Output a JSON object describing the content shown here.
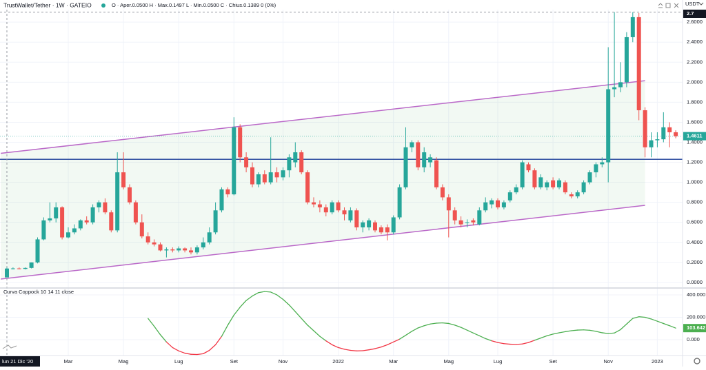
{
  "chart_data": {
    "type": "candlestick",
    "title": "TrustWallet/Tether · 1W · GATEIO",
    "legend_values": "O · Aper.0.0500  H · Max.0.1497  L · Min.0.0500  C · Chius.0.1389  0 (0%)",
    "currency": "USDT",
    "up_color": "#26a69a",
    "down_color": "#ef5350",
    "categories": [
      "lun 21 Dic '20",
      null,
      null,
      null,
      null,
      null,
      null,
      null,
      null,
      null,
      "Mar",
      null,
      null,
      null,
      null,
      null,
      null,
      null,
      null,
      "Mag",
      null,
      null,
      null,
      null,
      null,
      null,
      null,
      null,
      "Lug",
      null,
      null,
      null,
      null,
      null,
      null,
      null,
      null,
      "Set",
      null,
      null,
      null,
      null,
      null,
      null,
      null,
      "Nov",
      null,
      null,
      null,
      null,
      null,
      null,
      null,
      null,
      "2022",
      null,
      null,
      null,
      null,
      null,
      null,
      null,
      null,
      "Mar",
      null,
      null,
      null,
      null,
      null,
      null,
      null,
      null,
      "Mag",
      null,
      null,
      null,
      null,
      null,
      null,
      null,
      "Lug",
      null,
      null,
      null,
      null,
      null,
      null,
      null,
      null,
      "Set",
      null,
      null,
      null,
      null,
      null,
      null,
      null,
      null,
      "Nov",
      null,
      null,
      null,
      null,
      null,
      null,
      null,
      "2023",
      null,
      null,
      null
    ],
    "ohlc": [
      [
        0.05,
        0.1497,
        0.05,
        0.1389
      ],
      [
        0.139,
        0.15,
        0.13,
        0.14
      ],
      [
        0.14,
        0.15,
        0.13,
        0.135
      ],
      [
        0.135,
        0.15,
        0.13,
        0.145
      ],
      [
        0.145,
        0.2,
        0.14,
        0.2
      ],
      [
        0.2,
        0.45,
        0.19,
        0.43
      ],
      [
        0.43,
        0.65,
        0.42,
        0.62
      ],
      [
        0.62,
        0.8,
        0.6,
        0.64
      ],
      [
        0.64,
        0.8,
        0.6,
        0.75
      ],
      [
        0.75,
        0.76,
        0.43,
        0.45
      ],
      [
        0.45,
        0.55,
        0.44,
        0.5
      ],
      [
        0.5,
        0.58,
        0.48,
        0.54
      ],
      [
        0.54,
        0.63,
        0.52,
        0.62
      ],
      [
        0.62,
        0.66,
        0.58,
        0.6
      ],
      [
        0.6,
        0.78,
        0.58,
        0.75
      ],
      [
        0.75,
        0.82,
        0.7,
        0.8
      ],
      [
        0.8,
        0.84,
        0.68,
        0.7
      ],
      [
        0.7,
        0.72,
        0.5,
        0.52
      ],
      [
        0.52,
        1.3,
        0.5,
        1.1
      ],
      [
        1.1,
        1.3,
        0.93,
        0.95
      ],
      [
        0.95,
        0.98,
        0.78,
        0.8
      ],
      [
        0.8,
        0.82,
        0.58,
        0.6
      ],
      [
        0.6,
        0.68,
        0.44,
        0.46
      ],
      [
        0.46,
        0.5,
        0.38,
        0.4
      ],
      [
        0.4,
        0.43,
        0.36,
        0.38
      ],
      [
        0.38,
        0.4,
        0.31,
        0.32
      ],
      [
        0.32,
        0.35,
        0.25,
        0.33
      ],
      [
        0.33,
        0.35,
        0.3,
        0.32
      ],
      [
        0.32,
        0.36,
        0.3,
        0.34
      ],
      [
        0.34,
        0.35,
        0.3,
        0.32
      ],
      [
        0.32,
        0.35,
        0.28,
        0.3
      ],
      [
        0.3,
        0.37,
        0.28,
        0.35
      ],
      [
        0.35,
        0.45,
        0.33,
        0.4
      ],
      [
        0.4,
        0.55,
        0.38,
        0.5
      ],
      [
        0.5,
        0.8,
        0.48,
        0.72
      ],
      [
        0.72,
        0.95,
        0.7,
        0.93
      ],
      [
        0.93,
        0.95,
        0.85,
        0.88
      ],
      [
        0.88,
        1.65,
        0.87,
        1.55
      ],
      [
        1.55,
        1.58,
        1.2,
        1.25
      ],
      [
        1.25,
        1.3,
        1.1,
        1.15
      ],
      [
        1.15,
        1.2,
        0.95,
        0.98
      ],
      [
        0.98,
        1.1,
        0.95,
        1.08
      ],
      [
        1.08,
        1.12,
        0.98,
        1.0
      ],
      [
        1.0,
        1.45,
        0.98,
        1.1
      ],
      [
        1.1,
        1.15,
        1.0,
        1.05
      ],
      [
        1.05,
        1.15,
        1.02,
        1.12
      ],
      [
        1.12,
        1.28,
        1.05,
        1.25
      ],
      [
        1.2,
        1.4,
        1.15,
        1.3
      ],
      [
        1.3,
        1.32,
        1.08,
        1.1
      ],
      [
        1.1,
        1.12,
        0.78,
        0.8
      ],
      [
        0.8,
        0.85,
        0.75,
        0.78
      ],
      [
        0.78,
        0.82,
        0.7,
        0.75
      ],
      [
        0.75,
        0.78,
        0.66,
        0.7
      ],
      [
        0.7,
        0.82,
        0.68,
        0.8
      ],
      [
        0.8,
        0.82,
        0.7,
        0.72
      ],
      [
        0.72,
        0.75,
        0.62,
        0.68
      ],
      [
        0.62,
        0.75,
        0.6,
        0.72
      ],
      [
        0.72,
        0.74,
        0.52,
        0.55
      ],
      [
        0.55,
        0.62,
        0.5,
        0.6
      ],
      [
        0.55,
        0.64,
        0.52,
        0.62
      ],
      [
        0.6,
        0.62,
        0.5,
        0.52
      ],
      [
        0.55,
        0.57,
        0.48,
        0.5
      ],
      [
        0.55,
        0.58,
        0.42,
        0.5
      ],
      [
        0.5,
        0.67,
        0.48,
        0.65
      ],
      [
        0.65,
        0.98,
        0.63,
        0.95
      ],
      [
        0.95,
        1.55,
        0.93,
        1.35
      ],
      [
        1.35,
        1.42,
        1.3,
        1.4
      ],
      [
        1.4,
        1.42,
        1.12,
        1.15
      ],
      [
        1.15,
        1.35,
        1.1,
        1.3
      ],
      [
        1.2,
        1.28,
        1.15,
        1.25
      ],
      [
        1.22,
        1.25,
        0.93,
        0.95
      ],
      [
        0.95,
        0.98,
        0.82,
        0.85
      ],
      [
        0.85,
        0.88,
        0.45,
        0.72
      ],
      [
        0.72,
        0.75,
        0.58,
        0.62
      ],
      [
        0.62,
        0.66,
        0.55,
        0.58
      ],
      [
        0.6,
        0.63,
        0.55,
        0.6
      ],
      [
        0.62,
        0.64,
        0.57,
        0.6
      ],
      [
        0.58,
        0.75,
        0.57,
        0.72
      ],
      [
        0.72,
        0.85,
        0.7,
        0.8
      ],
      [
        0.78,
        0.84,
        0.74,
        0.82
      ],
      [
        0.82,
        0.84,
        0.73,
        0.75
      ],
      [
        0.75,
        0.82,
        0.73,
        0.8
      ],
      [
        0.82,
        0.92,
        0.8,
        0.9
      ],
      [
        0.9,
        0.98,
        0.88,
        0.95
      ],
      [
        0.95,
        1.22,
        0.93,
        1.2
      ],
      [
        1.18,
        1.2,
        1.1,
        1.12
      ],
      [
        1.12,
        1.14,
        0.93,
        0.95
      ],
      [
        0.95,
        1.08,
        0.93,
        1.05
      ],
      [
        0.95,
        1.02,
        0.92,
        1.0
      ],
      [
        1.02,
        1.05,
        0.93,
        0.95
      ],
      [
        0.95,
        1.04,
        0.93,
        1.02
      ],
      [
        1.0,
        1.02,
        0.88,
        0.9
      ],
      [
        0.88,
        0.9,
        0.84,
        0.86
      ],
      [
        0.86,
        0.92,
        0.84,
        0.9
      ],
      [
        0.9,
        1.02,
        0.88,
        1.0
      ],
      [
        1.0,
        1.12,
        0.98,
        1.1
      ],
      [
        1.1,
        1.2,
        1.05,
        1.18
      ],
      [
        1.18,
        1.25,
        1.15,
        1.2
      ],
      [
        1.2,
        2.35,
        1.0,
        1.93
      ],
      [
        1.93,
        2.7,
        1.85,
        1.95
      ],
      [
        1.95,
        2.2,
        1.9,
        2.0
      ],
      [
        2.0,
        2.5,
        1.95,
        2.45
      ],
      [
        2.45,
        2.7,
        2.4,
        2.65
      ],
      [
        2.65,
        2.6914,
        1.62,
        1.72
      ],
      [
        1.72,
        1.75,
        1.25,
        1.35
      ],
      [
        1.35,
        1.5,
        1.25,
        1.42
      ],
      [
        1.42,
        1.5,
        1.35,
        1.43
      ],
      [
        1.43,
        1.7,
        1.4,
        1.55
      ],
      [
        1.55,
        1.6,
        1.35,
        1.5
      ],
      [
        1.5,
        1.52,
        1.44,
        1.4611
      ]
    ],
    "ylim": [
      -0.035,
      2.725
    ],
    "yticks": [
      {
        "value": 0,
        "label": "0.0000"
      },
      {
        "value": 0.2,
        "label": "0.2000"
      },
      {
        "value": 0.4,
        "label": "0.4000"
      },
      {
        "value": 0.6,
        "label": "0.6000"
      },
      {
        "value": 0.8,
        "label": "0.8000"
      },
      {
        "value": 1.0,
        "label": "1.0000"
      },
      {
        "value": 1.2,
        "label": "1.2000"
      },
      {
        "value": 1.4,
        "label": "1.4000"
      },
      {
        "value": 1.6,
        "label": "1.6000"
      },
      {
        "value": 1.8,
        "label": "1.8000"
      },
      {
        "value": 2.0,
        "label": "2.0000"
      },
      {
        "value": 2.2,
        "label": "2.2000"
      },
      {
        "value": 2.4,
        "label": "2.4000"
      },
      {
        "value": 2.6,
        "label": "2.6000"
      }
    ],
    "grid": true,
    "trendlines": [
      {
        "color": "#ba68c8",
        "x": [
          -1,
          104
        ],
        "y": [
          1.29,
          2.015
        ]
      },
      {
        "color": "#ba68c8",
        "x": [
          -1,
          104
        ],
        "y": [
          0.034,
          0.77
        ]
      }
    ],
    "channel_fill": "rgba(76,175,80,0.07)",
    "hline": {
      "color": "#1e3f9a",
      "value": 1.23
    },
    "coppock": {
      "name": "Curva Coppock 10 14 11 close",
      "up_color": "#4caf50",
      "down_color": "#f23645",
      "values": [
        null,
        null,
        null,
        null,
        null,
        null,
        null,
        null,
        null,
        null,
        null,
        null,
        null,
        null,
        null,
        null,
        null,
        null,
        null,
        null,
        null,
        null,
        null,
        190,
        120,
        45,
        -20,
        -70,
        -100,
        -120,
        -130,
        -132,
        -125,
        -95,
        -45,
        30,
        130,
        220,
        290,
        350,
        390,
        420,
        430,
        425,
        400,
        360,
        310,
        250,
        190,
        130,
        80,
        30,
        -10,
        -45,
        -70,
        -85,
        -95,
        -100,
        -98,
        -90,
        -80,
        -65,
        -45,
        -20,
        5,
        40,
        75,
        105,
        125,
        140,
        148,
        150,
        145,
        130,
        110,
        85,
        60,
        35,
        10,
        -10,
        -25,
        -35,
        -40,
        -42,
        -38,
        -25,
        -5,
        15,
        35,
        50,
        62,
        72,
        80,
        86,
        88,
        84,
        75,
        62,
        55,
        60,
        90,
        140,
        190,
        205,
        200,
        185,
        165,
        145,
        125,
        103.642
      ],
      "y2lim": [
        -135,
        449
      ],
      "y2ticks": [
        {
          "value": 0,
          "label": "0.000"
        },
        {
          "value": 200,
          "label": "200.000"
        },
        {
          "value": 400,
          "label": "400.000"
        }
      ]
    }
  }
}
